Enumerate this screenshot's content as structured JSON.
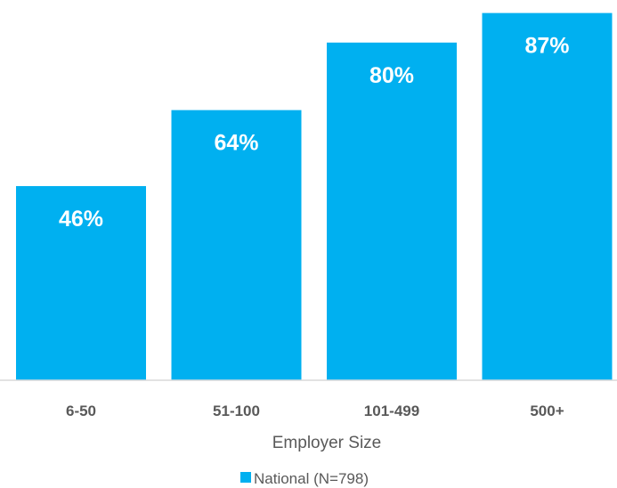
{
  "chart_data": {
    "type": "bar",
    "title": "",
    "categories": [
      "6-50",
      "51-100",
      "101-499",
      "500+"
    ],
    "series": [
      {
        "name": "National (N=798)",
        "values": [
          46,
          64,
          80,
          87
        ],
        "value_labels": [
          "46%",
          "64%",
          "80%",
          "87%"
        ],
        "color": "#00B0F0"
      }
    ],
    "xlabel": "Employer Size",
    "ylabel": "",
    "ylim": [
      0,
      100
    ],
    "grid": false,
    "legend": "bottom-center",
    "axis_color": "#D9D9D9",
    "text_color": "#595959"
  }
}
